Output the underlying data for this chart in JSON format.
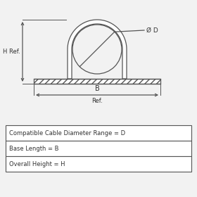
{
  "bg_color": "#f2f2f2",
  "line_color": "#555555",
  "text_color": "#333333",
  "table_lines": [
    "Compatible Cable Diameter Range = D",
    "Base Length = B",
    "Overall Height = H"
  ],
  "od_label": "Ø D",
  "b_label": "B",
  "ref_label": "Ref.",
  "h_label": "H Ref."
}
